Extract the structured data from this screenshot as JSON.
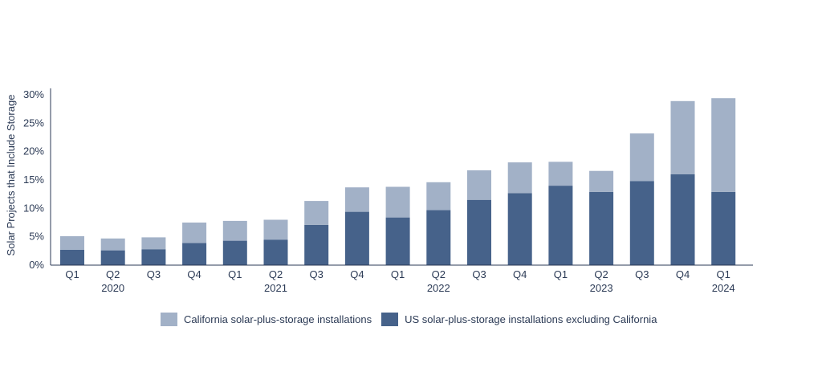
{
  "chart_data": {
    "type": "bar",
    "stacked": true,
    "title": "",
    "xlabel": "",
    "ylabel": "Solar Projects that Include Storage",
    "ylim": [
      0,
      30
    ],
    "yticks": [
      "0%",
      "5%",
      "10%",
      "15%",
      "20%",
      "25%",
      "30%"
    ],
    "yticks_values": [
      0,
      5,
      10,
      15,
      20,
      25,
      30
    ],
    "categories": [
      "Q1",
      "Q2",
      "Q3",
      "Q4",
      "Q1",
      "Q2",
      "Q3",
      "Q4",
      "Q1",
      "Q2",
      "Q3",
      "Q4",
      "Q1",
      "Q2",
      "Q3",
      "Q4",
      "Q1"
    ],
    "year_labels": [
      {
        "index": 1,
        "label": "2020"
      },
      {
        "index": 5,
        "label": "2021"
      },
      {
        "index": 9,
        "label": "2022"
      },
      {
        "index": 13,
        "label": "2023"
      },
      {
        "index": 16,
        "label": "2024"
      }
    ],
    "series": [
      {
        "name": "US solar-plus-storage installations excluding California",
        "color": "#46628a",
        "values": [
          2.7,
          2.6,
          2.8,
          3.9,
          4.3,
          4.5,
          7.1,
          9.4,
          8.4,
          9.7,
          11.5,
          12.7,
          14.0,
          12.9,
          14.8,
          16.0,
          12.9
        ]
      },
      {
        "name": "California solar-plus-storage installations",
        "color": "#a2b1c7",
        "values": [
          2.4,
          2.1,
          2.1,
          3.6,
          3.5,
          3.5,
          4.2,
          4.3,
          5.4,
          4.9,
          5.2,
          5.4,
          4.2,
          3.7,
          8.4,
          12.9,
          16.5
        ]
      }
    ],
    "legend_position": "bottom",
    "legend_order": [
      1,
      0
    ],
    "grid": false
  }
}
